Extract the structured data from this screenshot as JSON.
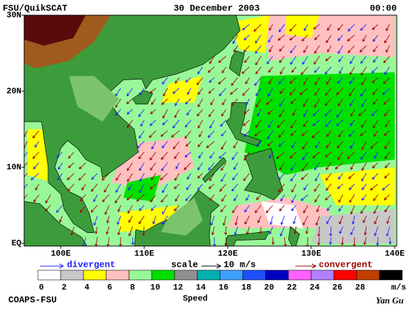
{
  "header": {
    "left": "FSU/QuikSCAT",
    "center": "30 December 2003",
    "right": "00:00"
  },
  "map": {
    "lat_labels": [
      "30N",
      "20N",
      "10N",
      "EQ"
    ],
    "lon_labels": [
      "100E",
      "110E",
      "120E",
      "130E",
      "140E"
    ]
  },
  "legend": {
    "divergent": "divergent",
    "scale": "scale",
    "scale_value": "10 m/s",
    "convergent": "convergent"
  },
  "colorbar": {
    "labels": [
      0,
      2,
      4,
      6,
      8,
      10,
      12,
      14,
      16,
      18,
      20,
      22,
      24,
      26,
      28
    ],
    "unit": "m/s",
    "title": "Speed",
    "colors": [
      "#ffffff",
      "#c8c8c8",
      "#ffff00",
      "#ffc0c0",
      "#98f898",
      "#00e000",
      "#909090",
      "#00b0b0",
      "#40a0ff",
      "#1e50ff",
      "#0000c0",
      "#ff60ff",
      "#b080ff",
      "#ff0000",
      "#c04000",
      "#000000"
    ]
  },
  "footer": {
    "left": "COAPS-FSU",
    "right": "Yan Gu"
  }
}
